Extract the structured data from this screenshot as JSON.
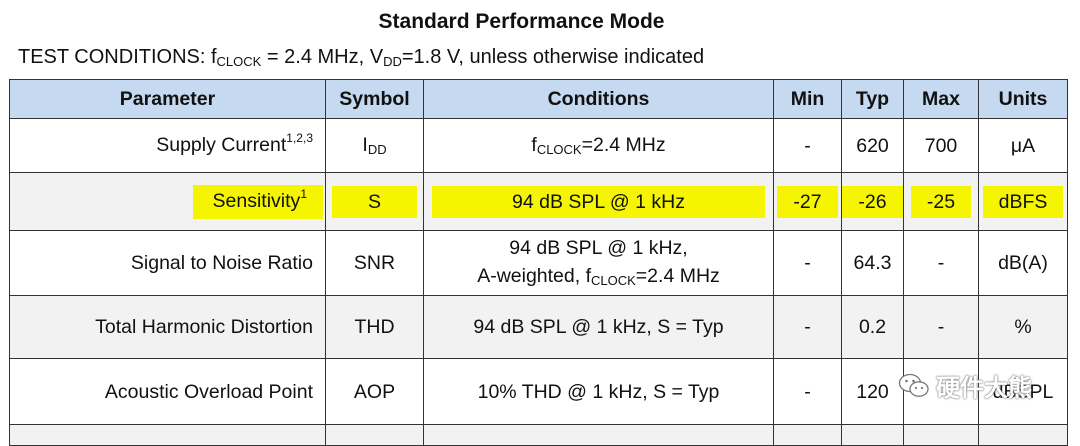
{
  "title": "Standard Performance Mode",
  "conditions": {
    "prefix": "TEST CONDITIONS: f",
    "clock_sub": "CLOCK",
    "clock_val": " = 2.4 MHz, V",
    "vdd_sub": "DD",
    "vdd_val": "=1.8 V, unless otherwise indicated"
  },
  "headers": [
    "Parameter",
    "Symbol",
    "Conditions",
    "Min",
    "Typ",
    "Max",
    "Units"
  ],
  "rows": [
    {
      "param": "Supply Current",
      "param_sup": "1,2,3",
      "symbol": "I",
      "symbol_sub": "DD",
      "cond_pre": "f",
      "cond_sub": "CLOCK",
      "cond_post": "=2.4 MHz",
      "min": "-",
      "typ": "620",
      "max": "700",
      "units": "μA"
    },
    {
      "param": "Sensitivity",
      "param_sup": "1",
      "symbol": "S",
      "cond": "94 dB SPL @ 1 kHz",
      "min": "-27",
      "typ": "-26",
      "max": "-25",
      "units": "dBFS"
    },
    {
      "param": "Signal to Noise Ratio",
      "symbol": "SNR",
      "cond_line1": "94 dB SPL @ 1 kHz,",
      "cond_line2_pre": "A-weighted, f",
      "cond_line2_sub": "CLOCK",
      "cond_line2_post": "=2.4 MHz",
      "min": "-",
      "typ": "64.3",
      "max": "-",
      "units": "dB(A)"
    },
    {
      "param": "Total Harmonic Distortion",
      "symbol": "THD",
      "cond": "94 dB SPL @ 1 kHz, S = Typ",
      "min": "-",
      "typ": "0.2",
      "max": "-",
      "units": "%"
    },
    {
      "param": "Acoustic Overload Point",
      "symbol": "AOP",
      "cond": "10% THD @ 1 kHz, S = Typ",
      "min": "-",
      "typ": "120",
      "max": "",
      "units": "dBSPL"
    }
  ],
  "watermark": {
    "text": "硬件大熊",
    "icon": "wechat-icon"
  },
  "colors": {
    "header_bg": "#c5d9f0",
    "highlight": "#f5f500",
    "stripe": "#f2f2f2"
  }
}
